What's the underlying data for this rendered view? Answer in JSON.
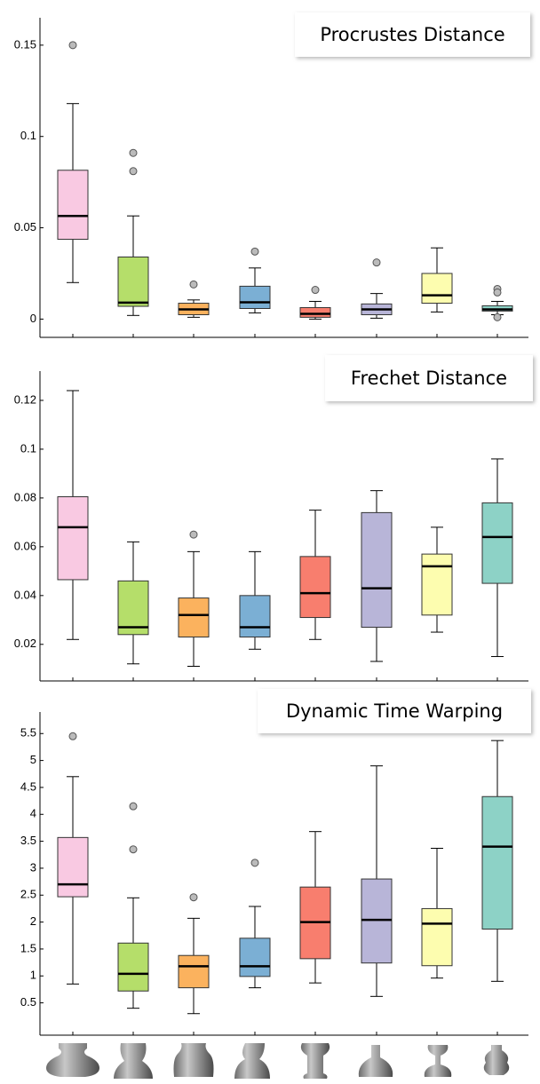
{
  "chart_data": [
    {
      "type": "box",
      "title": "Procrustes Distance",
      "ylim": [
        -0.01,
        0.165
      ],
      "yticks": [
        0,
        0.05,
        0.1,
        0.15
      ],
      "boxes": [
        {
          "color": "#f9c9e2",
          "whisker_low": 0.02,
          "q1": 0.0437,
          "median": 0.0565,
          "q3": 0.0815,
          "whisker_high": 0.118,
          "outliers": [
            0.15
          ]
        },
        {
          "color": "#b5de6a",
          "whisker_low": 0.002,
          "q1": 0.007,
          "median": 0.009,
          "q3": 0.034,
          "whisker_high": 0.0565,
          "outliers": [
            0.081,
            0.091
          ]
        },
        {
          "color": "#fbb25e",
          "whisker_low": 0.001,
          "q1": 0.0024,
          "median": 0.0053,
          "q3": 0.0087,
          "whisker_high": 0.0105,
          "outliers": [
            0.019
          ]
        },
        {
          "color": "#7bafd4",
          "whisker_low": 0.0034,
          "q1": 0.0058,
          "median": 0.0092,
          "q3": 0.018,
          "whisker_high": 0.028,
          "outliers": [
            0.037
          ]
        },
        {
          "color": "#f87e6e",
          "whisker_low": 0.0,
          "q1": 0.001,
          "median": 0.0029,
          "q3": 0.0063,
          "whisker_high": 0.0097,
          "outliers": [
            0.016
          ]
        },
        {
          "color": "#b8b5d8",
          "whisker_low": 0.0005,
          "q1": 0.0024,
          "median": 0.0053,
          "q3": 0.0083,
          "whisker_high": 0.014,
          "outliers": [
            0.031
          ]
        },
        {
          "color": "#fdfdaf",
          "whisker_low": 0.0039,
          "q1": 0.0087,
          "median": 0.013,
          "q3": 0.025,
          "whisker_high": 0.039,
          "outliers": []
        },
        {
          "color": "#8dd2c6",
          "whisker_low": 0.0024,
          "q1": 0.0044,
          "median": 0.0053,
          "q3": 0.0073,
          "whisker_high": 0.0097,
          "outliers": [
            0.0165,
            0.0146,
            0.001
          ]
        }
      ]
    },
    {
      "type": "box",
      "title": "Frechet Distance",
      "ylim": [
        0.005,
        0.132
      ],
      "yticks": [
        0.02,
        0.04,
        0.06,
        0.08,
        0.1,
        0.12
      ],
      "boxes": [
        {
          "color": "#f9c9e2",
          "whisker_low": 0.022,
          "q1": 0.0465,
          "median": 0.068,
          "q3": 0.0805,
          "whisker_high": 0.124,
          "outliers": []
        },
        {
          "color": "#b5de6a",
          "whisker_low": 0.012,
          "q1": 0.024,
          "median": 0.027,
          "q3": 0.046,
          "whisker_high": 0.062,
          "outliers": []
        },
        {
          "color": "#fbb25e",
          "whisker_low": 0.011,
          "q1": 0.023,
          "median": 0.032,
          "q3": 0.039,
          "whisker_high": 0.058,
          "outliers": [
            0.065
          ]
        },
        {
          "color": "#7bafd4",
          "whisker_low": 0.018,
          "q1": 0.023,
          "median": 0.027,
          "q3": 0.04,
          "whisker_high": 0.058,
          "outliers": []
        },
        {
          "color": "#f87e6e",
          "whisker_low": 0.022,
          "q1": 0.031,
          "median": 0.041,
          "q3": 0.056,
          "whisker_high": 0.075,
          "outliers": []
        },
        {
          "color": "#b8b5d8",
          "whisker_low": 0.013,
          "q1": 0.027,
          "median": 0.043,
          "q3": 0.074,
          "whisker_high": 0.083,
          "outliers": []
        },
        {
          "color": "#fdfdaf",
          "whisker_low": 0.025,
          "q1": 0.032,
          "median": 0.052,
          "q3": 0.057,
          "whisker_high": 0.068,
          "outliers": []
        },
        {
          "color": "#8dd2c6",
          "whisker_low": 0.015,
          "q1": 0.045,
          "median": 0.064,
          "q3": 0.078,
          "whisker_high": 0.096,
          "outliers": []
        }
      ]
    },
    {
      "type": "box",
      "title": "Dynamic Time Warping",
      "ylim": [
        -0.1,
        5.9
      ],
      "yticks": [
        0.5,
        1,
        1.5,
        2,
        2.5,
        3,
        3.5,
        4,
        4.5,
        5,
        5.5
      ],
      "boxes": [
        {
          "color": "#f9c9e2",
          "whisker_low": 0.85,
          "q1": 2.47,
          "median": 2.7,
          "q3": 3.57,
          "whisker_high": 4.7,
          "outliers": [
            5.45
          ]
        },
        {
          "color": "#b5de6a",
          "whisker_low": 0.4,
          "q1": 0.72,
          "median": 1.04,
          "q3": 1.61,
          "whisker_high": 2.45,
          "outliers": [
            3.35,
            4.15
          ]
        },
        {
          "color": "#fbb25e",
          "whisker_low": 0.3,
          "q1": 0.78,
          "median": 1.18,
          "q3": 1.38,
          "whisker_high": 2.07,
          "outliers": [
            2.46
          ]
        },
        {
          "color": "#7bafd4",
          "whisker_low": 0.78,
          "q1": 0.99,
          "median": 1.18,
          "q3": 1.7,
          "whisker_high": 2.29,
          "outliers": [
            3.1
          ]
        },
        {
          "color": "#f87e6e",
          "whisker_low": 0.87,
          "q1": 1.32,
          "median": 2.0,
          "q3": 2.65,
          "whisker_high": 3.68,
          "outliers": []
        },
        {
          "color": "#b8b5d8",
          "whisker_low": 0.62,
          "q1": 1.24,
          "median": 2.04,
          "q3": 2.8,
          "whisker_high": 4.9,
          "outliers": []
        },
        {
          "color": "#fdfdaf",
          "whisker_low": 0.96,
          "q1": 1.19,
          "median": 1.97,
          "q3": 2.25,
          "whisker_high": 3.37,
          "outliers": []
        },
        {
          "color": "#8dd2c6",
          "whisker_low": 0.9,
          "q1": 1.87,
          "median": 3.4,
          "q3": 4.33,
          "whisker_high": 5.37,
          "outliers": []
        }
      ]
    }
  ]
}
